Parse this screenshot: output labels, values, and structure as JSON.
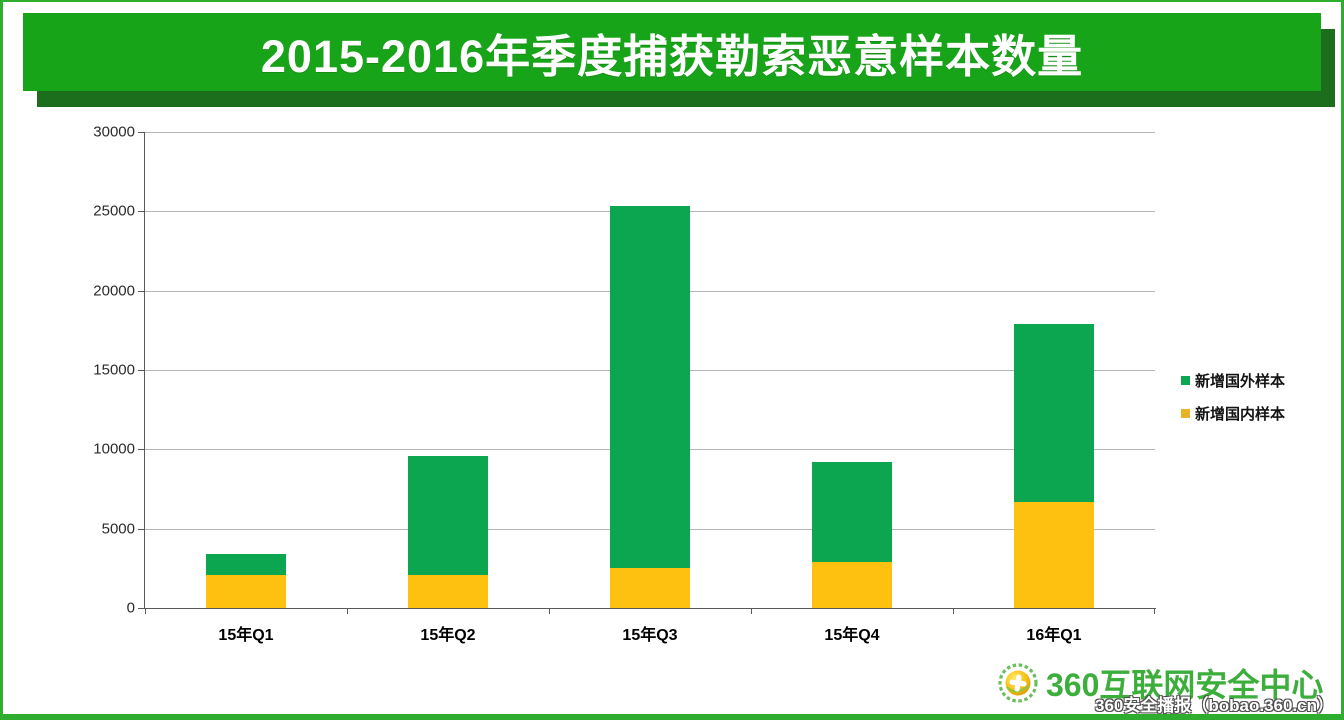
{
  "page": {
    "title": "2015-2016年季度捕获勒索恶意样本数量",
    "colors": {
      "banner_green": "#18a418",
      "banner_shadow_green": "#1c6e1c",
      "frame_green": "#2fad2f",
      "series_foreign_green": "#0ba64f",
      "series_domestic_yellow": "#ffc110",
      "legend_yellow": "#e8b326",
      "logo_green": "#3cae3c",
      "gridline_gray": "#b5b5b5",
      "axis_gray": "#595959"
    }
  },
  "chart_data": {
    "type": "bar",
    "stacked": true,
    "title": "2015-2016年季度捕获勒索恶意样本数量",
    "xlabel": "",
    "ylabel": "",
    "categories": [
      "15年Q1",
      "15年Q2",
      "15年Q3",
      "15年Q4",
      "16年Q1"
    ],
    "series": [
      {
        "name": "新增国内样本",
        "color": "#ffc110",
        "stack_position": "bottom",
        "values": [
          2100,
          2100,
          2550,
          2900,
          6650
        ]
      },
      {
        "name": "新增国外样本",
        "color": "#0ba64f",
        "stack_position": "top",
        "values": [
          1300,
          7500,
          22800,
          6300,
          11250
        ]
      }
    ],
    "totals": [
      3400,
      9600,
      25350,
      9200,
      17900
    ],
    "ylim": [
      0,
      30000
    ],
    "yticks": [
      0,
      5000,
      10000,
      15000,
      20000,
      25000,
      30000
    ],
    "grid": true,
    "legend_position": "right"
  },
  "legend": {
    "items": [
      {
        "label": "新增国外样本",
        "color": "#0ba64f"
      },
      {
        "label": "新增国内样本",
        "color": "#e8b326"
      }
    ]
  },
  "footer": {
    "logo_text": "360互联网安全中心",
    "watermark": "360安全播报（bobao.360.cn）"
  }
}
